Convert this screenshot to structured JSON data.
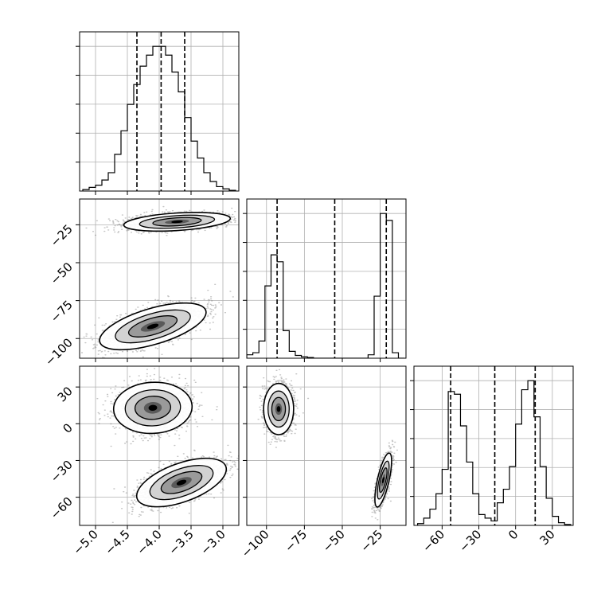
{
  "chart_data": {
    "type": "corner",
    "grid": true,
    "colors": {
      "line": "#000000",
      "grid": "#b0b0b0",
      "scatter": "#555555"
    },
    "parameters": [
      {
        "range": [
          -5.25,
          -2.75
        ],
        "ticks": [
          -5.0,
          -4.5,
          -4.0,
          -3.5,
          -3.0
        ],
        "tick_labels": [
          "−5.0",
          "−4.5",
          "−4.0",
          "−3.5",
          "−3.0"
        ]
      },
      {
        "range": [
          -113,
          -8
        ],
        "ticks": [
          -100,
          -75,
          -50,
          -25
        ],
        "tick_labels": [
          "−100",
          "−75",
          "−50",
          "−25"
        ]
      },
      {
        "range": [
          -83,
          47
        ],
        "ticks": [
          -60,
          -30,
          0,
          30
        ],
        "tick_labels": [
          "−60",
          "−30",
          "0",
          "30"
        ]
      }
    ],
    "histograms": [
      {
        "param": 0,
        "bin_edges": [
          -5.2,
          -5.1,
          -5.0,
          -4.9,
          -4.8,
          -4.7,
          -4.6,
          -4.5,
          -4.4,
          -4.3,
          -4.2,
          -4.1,
          -4.0,
          -3.9,
          -3.8,
          -3.7,
          -3.6,
          -3.5,
          -3.4,
          -3.3,
          -3.2,
          -3.1,
          -3.0,
          -2.9,
          -2.8
        ],
        "counts": [
          2,
          5,
          8,
          15,
          25,
          50,
          82,
          118,
          145,
          170,
          185,
          197,
          197,
          185,
          162,
          135,
          100,
          68,
          45,
          25,
          13,
          6,
          3,
          1
        ],
        "quantiles": [
          -4.35,
          -3.97,
          -3.6
        ]
      },
      {
        "param": 1,
        "bin_edges": [
          -113,
          -109,
          -105,
          -101,
          -97,
          -93,
          -89,
          -85,
          -81,
          -77,
          -73,
          -69,
          -65,
          -61,
          -57,
          -53,
          -49,
          -45,
          -41,
          -37,
          -33,
          -29,
          -25,
          -21,
          -17,
          -13,
          -9
        ],
        "counts": [
          5,
          8,
          25,
          105,
          150,
          140,
          40,
          10,
          4,
          2,
          1,
          0,
          0,
          0,
          0,
          0,
          0,
          0,
          0,
          0,
          5,
          90,
          210,
          200,
          8,
          0
        ],
        "quantiles": [
          -93,
          -55,
          -21
        ]
      },
      {
        "param": 2,
        "bin_edges": [
          -80,
          -75,
          -70,
          -65,
          -60,
          -55,
          -50,
          -45,
          -40,
          -35,
          -30,
          -25,
          -20,
          -15,
          -10,
          -5,
          0,
          5,
          10,
          15,
          20,
          25,
          30,
          35,
          40,
          45
        ],
        "counts": [
          2,
          8,
          18,
          35,
          62,
          148,
          145,
          110,
          70,
          35,
          12,
          8,
          5,
          25,
          40,
          65,
          112,
          150,
          160,
          120,
          65,
          30,
          10,
          3,
          1
        ],
        "quantiles": [
          -53,
          -17,
          16
        ]
      }
    ],
    "densities": [
      {
        "x_param": 0,
        "y_param": 1,
        "sample_count": 4000,
        "clusters": [
          {
            "mean": [
              -3.72,
              -23
            ],
            "std": [
              0.38,
              2.8
            ],
            "corr": 0.35,
            "weight": 0.5
          },
          {
            "mean": [
              -4.1,
              -92
            ],
            "std": [
              0.38,
              7.0
            ],
            "corr": 0.6,
            "weight": 0.5
          }
        ]
      },
      {
        "x_param": 0,
        "y_param": 2,
        "sample_count": 4000,
        "clusters": [
          {
            "mean": [
              -4.1,
              13
            ],
            "std": [
              0.28,
              9.5
            ],
            "corr": 0.05,
            "weight": 0.5
          },
          {
            "mean": [
              -3.65,
              -48
            ],
            "std": [
              0.32,
              9.0
            ],
            "corr": 0.55,
            "weight": 0.5
          }
        ]
      },
      {
        "x_param": 1,
        "y_param": 2,
        "sample_count": 4000,
        "clusters": [
          {
            "mean": [
              -92,
              12
            ],
            "std": [
              4.5,
              9.5
            ],
            "corr": 0.0,
            "weight": 0.5
          },
          {
            "mean": [
              -23,
              -46
            ],
            "std": [
              2.5,
              10.0
            ],
            "corr": 0.7,
            "weight": 0.5
          }
        ]
      }
    ]
  }
}
